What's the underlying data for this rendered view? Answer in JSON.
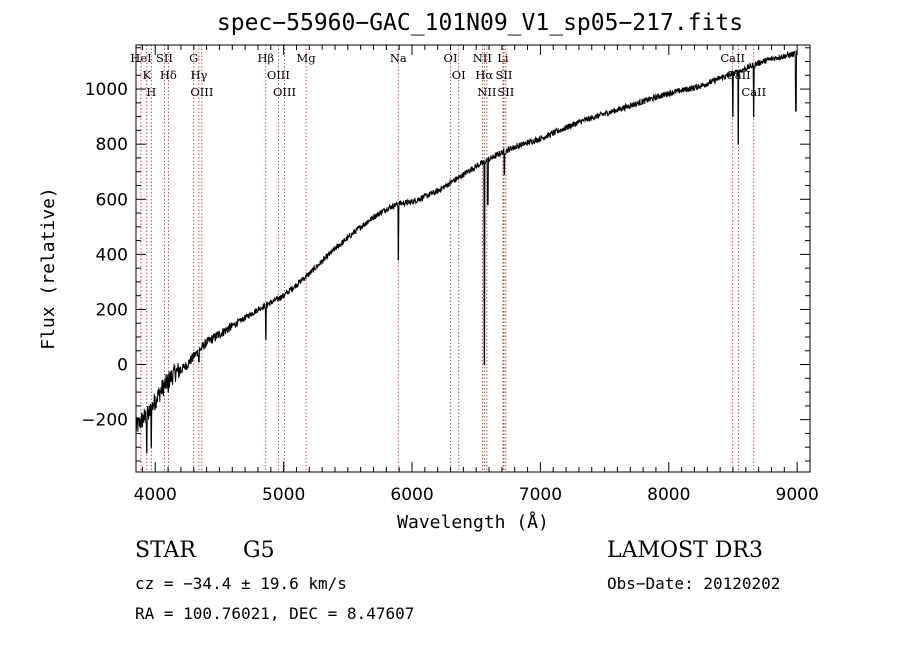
{
  "chart_data": {
    "type": "line",
    "title": "spec−55960−GAC_101N09_V1_sp05−217.fits",
    "xlabel": "Wavelength (Å)",
    "ylabel": "Flux (relative)",
    "xlim": [
      3850,
      9100
    ],
    "ylim": [
      -390,
      1160
    ],
    "x_ticks": [
      4000,
      5000,
      6000,
      7000,
      8000,
      9000
    ],
    "x_tick_labels": [
      "4000",
      "5000",
      "6000",
      "7000",
      "8000",
      "9000"
    ],
    "y_ticks": [
      -200,
      0,
      200,
      400,
      600,
      800,
      1000
    ],
    "y_tick_labels": [
      "−200",
      "0",
      "200",
      "400",
      "600",
      "800",
      "1000"
    ],
    "spectrum": {
      "x": [
        3850,
        3900,
        3950,
        4000,
        4050,
        4100,
        4150,
        4200,
        4250,
        4300,
        4350,
        4400,
        4500,
        4600,
        4700,
        4800,
        4900,
        5000,
        5100,
        5200,
        5300,
        5400,
        5500,
        5600,
        5700,
        5800,
        5900,
        6000,
        6100,
        6200,
        6300,
        6400,
        6500,
        6600,
        6700,
        6800,
        6900,
        7000,
        7100,
        7200,
        7300,
        7400,
        7500,
        7600,
        7700,
        7800,
        7900,
        8000,
        8100,
        8200,
        8300,
        8400,
        8500,
        8600,
        8700,
        8800,
        8900,
        9000
      ],
      "y": [
        -230,
        -200,
        -180,
        -130,
        -90,
        -60,
        -30,
        -20,
        0,
        30,
        55,
        80,
        110,
        140,
        170,
        200,
        225,
        250,
        290,
        330,
        375,
        420,
        460,
        500,
        535,
        565,
        585,
        590,
        610,
        630,
        660,
        690,
        720,
        745,
        770,
        790,
        805,
        820,
        840,
        860,
        880,
        895,
        910,
        925,
        940,
        955,
        970,
        985,
        995,
        1005,
        1020,
        1040,
        1055,
        1075,
        1095,
        1110,
        1120,
        1130
      ],
      "dips": [
        {
          "x": 3934,
          "y": -320
        },
        {
          "x": 3969,
          "y": -300
        },
        {
          "x": 4102,
          "y": -100
        },
        {
          "x": 4340,
          "y": 10
        },
        {
          "x": 4861,
          "y": 90
        },
        {
          "x": 5893,
          "y": 380
        },
        {
          "x": 6563,
          "y": 0
        },
        {
          "x": 6590,
          "y": 580
        },
        {
          "x": 6718,
          "y": 690
        },
        {
          "x": 8498,
          "y": 900
        },
        {
          "x": 8542,
          "y": 800
        },
        {
          "x": 8662,
          "y": 900
        },
        {
          "x": 8990,
          "y": 920
        }
      ]
    },
    "line_markers": [
      {
        "x": 3889,
        "name": "HeI"
      },
      {
        "x": 3934,
        "name": "K"
      },
      {
        "x": 3969,
        "name": "H"
      },
      {
        "x": 4072,
        "name": "SII"
      },
      {
        "x": 4102,
        "name": "Hδ"
      },
      {
        "x": 4300,
        "name": "G"
      },
      {
        "x": 4340,
        "name": "Hγ"
      },
      {
        "x": 4363,
        "name": "OIII"
      },
      {
        "x": 4861,
        "name": "Hβ"
      },
      {
        "x": 4959,
        "name": "OIII"
      },
      {
        "x": 5007,
        "name": "OIII"
      },
      {
        "x": 5175,
        "name": "Mg"
      },
      {
        "x": 5893,
        "name": "Na"
      },
      {
        "x": 6300,
        "name": "OI"
      },
      {
        "x": 6364,
        "name": "OI"
      },
      {
        "x": 6548,
        "name": "NII"
      },
      {
        "x": 6563,
        "name": "Hα"
      },
      {
        "x": 6583,
        "name": "NII"
      },
      {
        "x": 6708,
        "name": "Li"
      },
      {
        "x": 6716,
        "name": "SII"
      },
      {
        "x": 6731,
        "name": "SII"
      },
      {
        "x": 8498,
        "name": "CaII"
      },
      {
        "x": 8542,
        "name": "CaII"
      },
      {
        "x": 8662,
        "name": "CaII"
      }
    ]
  },
  "annotations": {
    "class": "STAR",
    "subclass": "G5",
    "survey": "LAMOST DR3",
    "redshift": "cz = −34.4 ± 19.6 km/s",
    "obs_date": "Obs−Date: 20120202",
    "coords": "RA = 100.76021, DEC =   8.47607"
  }
}
